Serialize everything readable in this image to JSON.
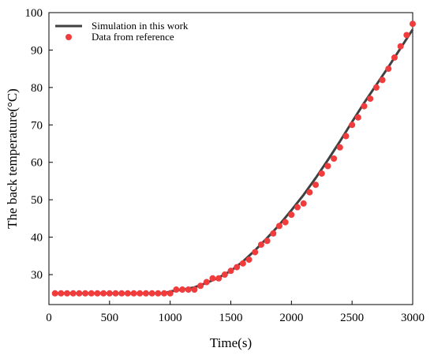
{
  "chart_data": {
    "type": "line",
    "title": "",
    "xlabel": "Time(s)",
    "ylabel": "The back temperature(°C)",
    "xlim": [
      0,
      3000
    ],
    "ylim": [
      22,
      100
    ],
    "x_ticks": [
      0,
      500,
      1000,
      1500,
      2000,
      2500,
      3000
    ],
    "y_ticks": [
      30,
      40,
      50,
      60,
      70,
      80,
      90,
      100
    ],
    "grid": false,
    "legend_position": "top-left",
    "series": [
      {
        "name": "Simulation in this work",
        "style": "line",
        "color": "#404040",
        "x": [
          50,
          200,
          400,
          600,
          800,
          950,
          1000,
          1100,
          1200,
          1300,
          1400,
          1500,
          1600,
          1700,
          1800,
          1900,
          2000,
          2100,
          2200,
          2300,
          2400,
          2500,
          2600,
          2700,
          2800,
          2900,
          3000
        ],
        "y": [
          25,
          25,
          25,
          25,
          25,
          25,
          25.5,
          26,
          26.6,
          27.8,
          29.2,
          31.0,
          33.5,
          36.5,
          39.8,
          43.3,
          47.2,
          51.3,
          55.8,
          60.6,
          65.6,
          70.8,
          75.9,
          80.7,
          85.5,
          90.5,
          95.5
        ]
      },
      {
        "name": "Data from reference",
        "style": "scatter",
        "color": "#f03c3c",
        "x": [
          50,
          100,
          150,
          200,
          250,
          300,
          350,
          400,
          450,
          500,
          550,
          600,
          650,
          700,
          750,
          800,
          850,
          900,
          950,
          1000,
          1050,
          1100,
          1150,
          1200,
          1250,
          1300,
          1350,
          1400,
          1450,
          1500,
          1550,
          1600,
          1650,
          1700,
          1750,
          1800,
          1850,
          1900,
          1950,
          2000,
          2050,
          2100,
          2150,
          2200,
          2250,
          2300,
          2350,
          2400,
          2450,
          2500,
          2550,
          2600,
          2650,
          2700,
          2750,
          2800,
          2850,
          2900,
          2950,
          3000
        ],
        "y": [
          25,
          25,
          25,
          25,
          25,
          25,
          25,
          25,
          25,
          25,
          25,
          25,
          25,
          25,
          25,
          25,
          25,
          25,
          25,
          25,
          26,
          26,
          26,
          26,
          27,
          28,
          29,
          29,
          30,
          31,
          32,
          33,
          34,
          36,
          38,
          39,
          41,
          43,
          44,
          46,
          48,
          49,
          52,
          54,
          57,
          59,
          61,
          64,
          67,
          70,
          72,
          75,
          77,
          80,
          82,
          85,
          88,
          91,
          94,
          97
        ]
      }
    ]
  }
}
